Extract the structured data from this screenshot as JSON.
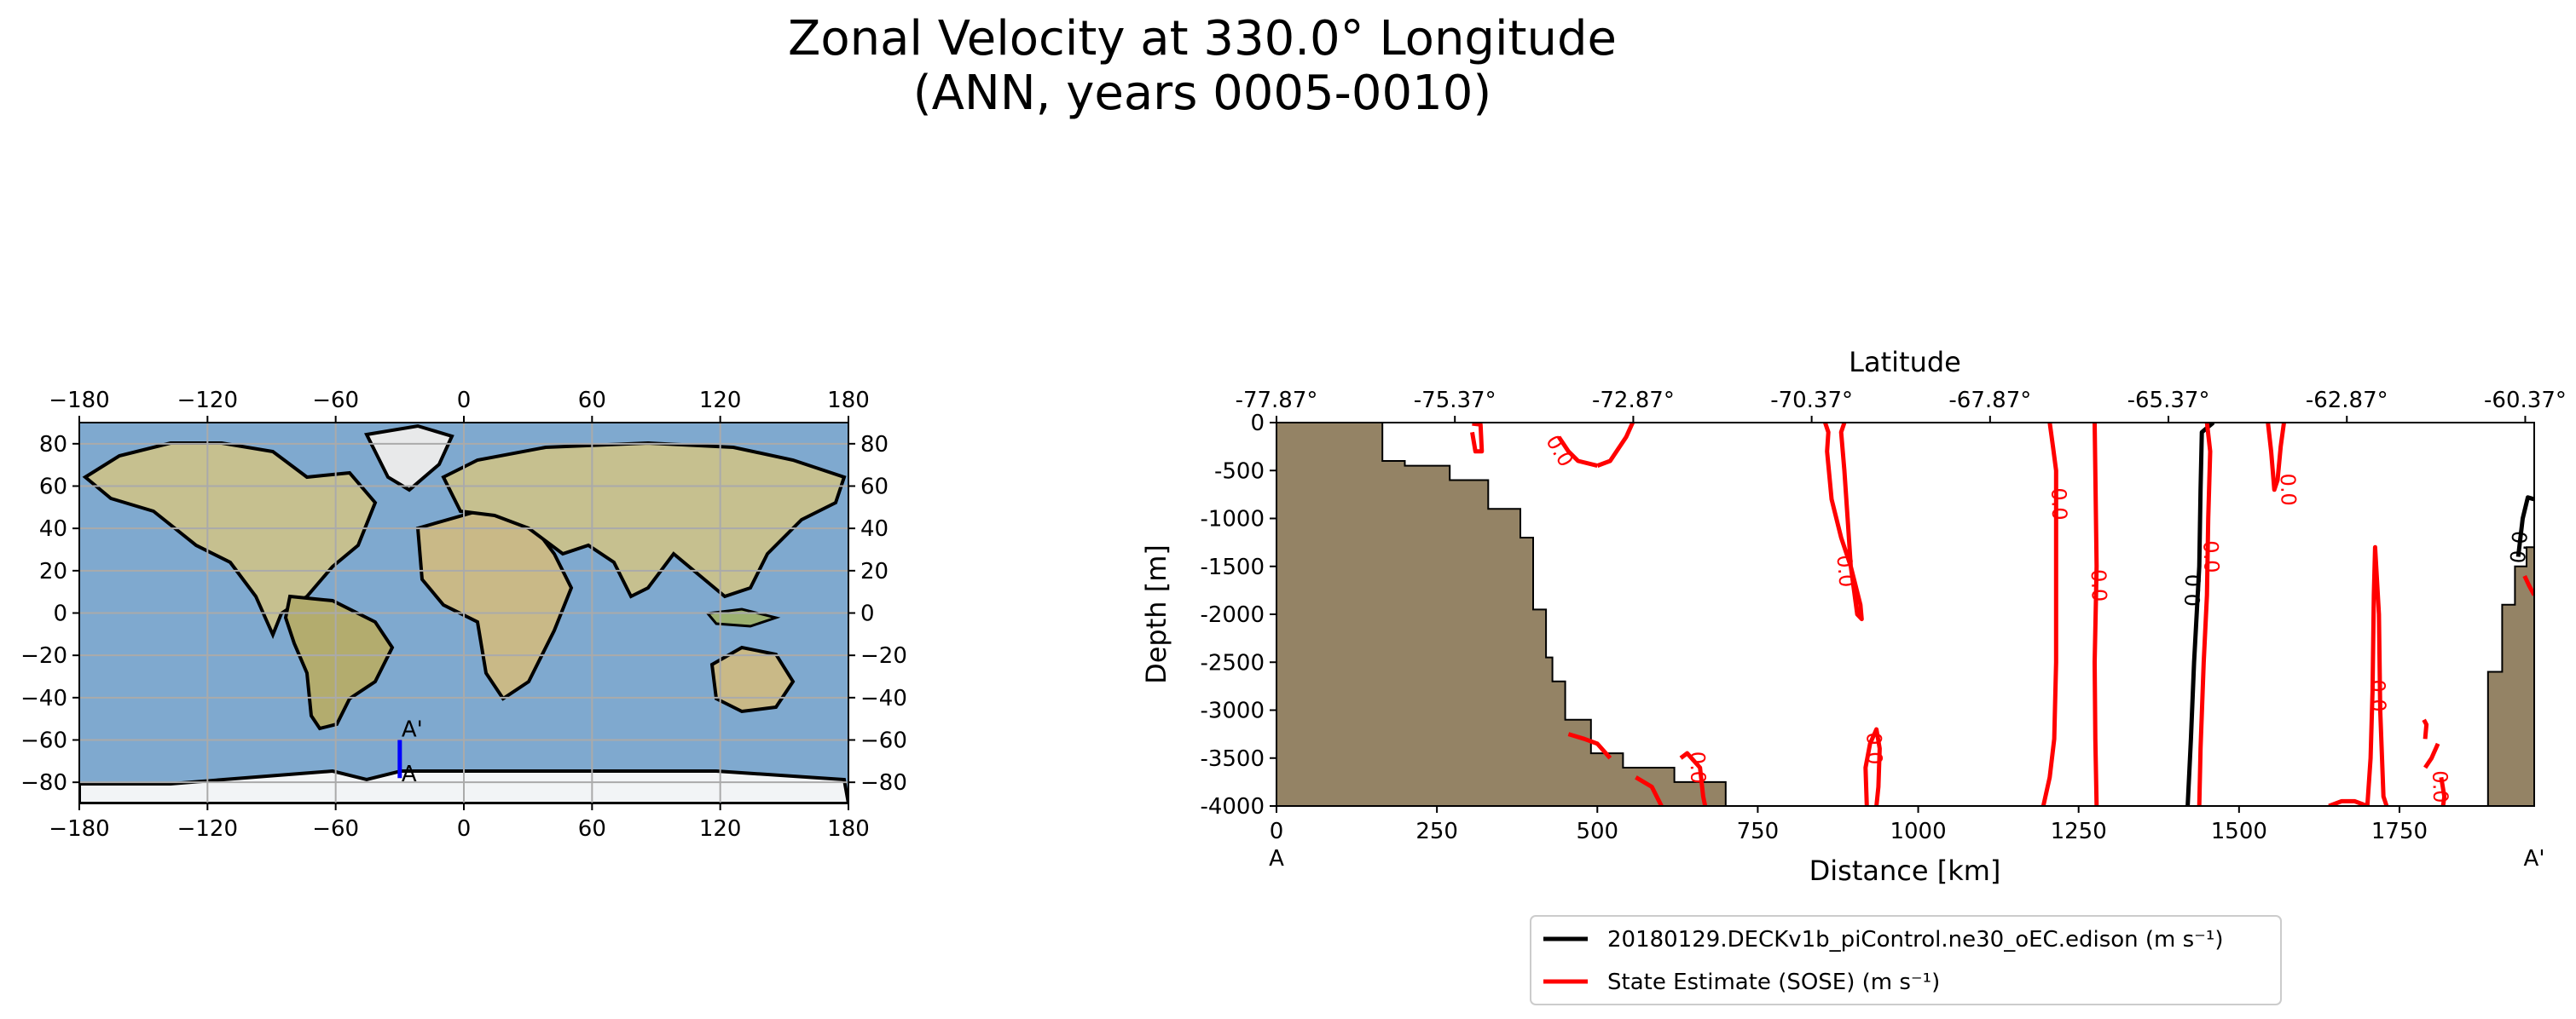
{
  "title_line1": "Zonal Velocity at 330.0° Longitude",
  "title_line2": "(ANN, years 0005-0010)",
  "map": {
    "x_ticks": [
      -180,
      -120,
      -60,
      0,
      60,
      120,
      180
    ],
    "y_ticks": [
      80,
      60,
      40,
      20,
      0,
      -20,
      -40,
      -60,
      -80
    ],
    "x_ticks_text": [
      "−180",
      "−120",
      "−60",
      "0",
      "60",
      "120",
      "180"
    ],
    "y_ticks_text": [
      "80",
      "60",
      "40",
      "20",
      "0",
      "−20",
      "−40",
      "−60",
      "−80"
    ],
    "transect_label_start": "A",
    "transect_label_end": "A'",
    "transect_lon": -30,
    "transect_lat_start": -78,
    "transect_lat_end": -60,
    "colors": {
      "ocean": "#7fa9cf",
      "land": "#c6c08f",
      "ice": "#f2f4f6",
      "transect": "#0000ff"
    }
  },
  "chart_data": {
    "type": "line",
    "xlabel": "Distance [km]",
    "ylabel": "Depth [m]",
    "top_axis_label": "Latitude",
    "xlim": [
      0,
      1960
    ],
    "ylim": [
      -4000,
      0
    ],
    "x_ticks": [
      0,
      250,
      500,
      750,
      1000,
      1250,
      1500,
      1750
    ],
    "x_tick_labels": [
      "0",
      "250",
      "500",
      "750",
      "1000",
      "1250",
      "1500",
      "1750"
    ],
    "y_ticks": [
      0,
      -500,
      -1000,
      -1500,
      -2000,
      -2500,
      -3000,
      -3500,
      -4000
    ],
    "y_tick_labels": [
      "0",
      "-500",
      "-1000",
      "-1500",
      "-2000",
      "-2500",
      "-3000",
      "-3500",
      "-4000"
    ],
    "top_ticks_km": [
      0,
      278,
      556,
      834,
      1112,
      1390,
      1668,
      1946
    ],
    "top_tick_labels": [
      "-77.87°",
      "-75.37°",
      "-72.87°",
      "-70.37°",
      "-67.87°",
      "-65.37°",
      "-62.87°",
      "-60.37°"
    ],
    "endpoint_labels": {
      "start": "A",
      "end": "A'"
    },
    "bathymetry_color": "#948365",
    "bathymetry": [
      [
        0,
        0
      ],
      [
        165,
        0
      ],
      [
        165,
        -400
      ],
      [
        200,
        -400
      ],
      [
        200,
        -450
      ],
      [
        270,
        -450
      ],
      [
        270,
        -600
      ],
      [
        330,
        -600
      ],
      [
        330,
        -900
      ],
      [
        380,
        -900
      ],
      [
        380,
        -1200
      ],
      [
        400,
        -1200
      ],
      [
        400,
        -1950
      ],
      [
        420,
        -1950
      ],
      [
        420,
        -2450
      ],
      [
        430,
        -2450
      ],
      [
        430,
        -2700
      ],
      [
        450,
        -2700
      ],
      [
        450,
        -3100
      ],
      [
        490,
        -3100
      ],
      [
        490,
        -3450
      ],
      [
        540,
        -3450
      ],
      [
        540,
        -3600
      ],
      [
        620,
        -3600
      ],
      [
        620,
        -3750
      ],
      [
        700,
        -3750
      ],
      [
        700,
        -4000
      ],
      [
        0,
        -4000
      ]
    ],
    "bathymetry_right": [
      [
        1960,
        -4000
      ],
      [
        1888,
        -4000
      ],
      [
        1888,
        -2600
      ],
      [
        1910,
        -2600
      ],
      [
        1910,
        -1900
      ],
      [
        1930,
        -1900
      ],
      [
        1930,
        -1500
      ],
      [
        1948,
        -1500
      ],
      [
        1948,
        -1300
      ],
      [
        1960,
        -1300
      ]
    ],
    "series": [
      {
        "name": "20180129.DECKv1b_piControl.ne30_oEC.edison (m s⁻¹)",
        "color": "#000000",
        "lines": [
          [
            [
              1420,
              -4000
            ],
            [
              1425,
              -3300
            ],
            [
              1430,
              -2500
            ],
            [
              1438,
              -1500
            ],
            [
              1440,
              -700
            ],
            [
              1442,
              -100
            ],
            [
              1460,
              0
            ]
          ],
          [
            [
              1935,
              -1400
            ],
            [
              1942,
              -1000
            ],
            [
              1950,
              -780
            ],
            [
              1960,
              -800
            ]
          ]
        ],
        "labels": [
          {
            "text": "0.0",
            "x": 1430,
            "y": -1750,
            "rotate": -88
          },
          {
            "text": "0.0",
            "x": 1938,
            "y": -1300,
            "rotate": -85
          }
        ]
      },
      {
        "name": "State Estimate (SOSE) (m s⁻¹)",
        "color": "#ff0000",
        "lines": [
          [
            [
              305,
              -100
            ],
            [
              310,
              -300
            ],
            [
              320,
              -300
            ],
            [
              318,
              -20
            ],
            [
              305,
              -10
            ]
          ],
          [
            [
              440,
              -150
            ],
            [
              455,
              -300
            ],
            [
              470,
              -400
            ],
            [
              500,
              -450
            ]
          ],
          [
            [
              500,
              -450
            ],
            [
              520,
              -400
            ],
            [
              545,
              -150
            ],
            [
              555,
              0
            ]
          ],
          [
            [
              855,
              0
            ],
            [
              860,
              -100
            ],
            [
              858,
              -300
            ],
            [
              865,
              -800
            ],
            [
              880,
              -1200
            ],
            [
              895,
              -1500
            ],
            [
              910,
              -1900
            ],
            [
              912,
              -2050
            ],
            [
              905,
              -2000
            ],
            [
              895,
              -1500
            ],
            [
              890,
              -1000
            ],
            [
              885,
              -500
            ],
            [
              880,
              -100
            ],
            [
              885,
              0
            ]
          ],
          [
            [
              1205,
              0
            ],
            [
              1210,
              -250
            ],
            [
              1215,
              -500
            ],
            [
              1215,
              -1500
            ],
            [
              1215,
              -2500
            ],
            [
              1212,
              -3300
            ],
            [
              1205,
              -3700
            ],
            [
              1195,
              -4000
            ]
          ],
          [
            [
              1275,
              0
            ],
            [
              1278,
              -1500
            ],
            [
              1275,
              -2500
            ],
            [
              1276,
              -3300
            ],
            [
              1278,
              -4000
            ]
          ],
          [
            [
              1450,
              0
            ],
            [
              1455,
              -300
            ],
            [
              1452,
              -1000
            ],
            [
              1450,
              -1800
            ],
            [
              1445,
              -2500
            ],
            [
              1440,
              -3400
            ],
            [
              1438,
              -4000
            ]
          ],
          [
            [
              1545,
              0
            ],
            [
              1550,
              -300
            ],
            [
              1555,
              -700
            ],
            [
              1560,
              -600
            ],
            [
              1565,
              -250
            ],
            [
              1570,
              0
            ]
          ],
          [
            [
              920,
              -4000
            ],
            [
              918,
              -3600
            ],
            [
              925,
              -3350
            ],
            [
              935,
              -3200
            ],
            [
              940,
              -3400
            ],
            [
              938,
              -3800
            ],
            [
              935,
              -4000
            ]
          ],
          [
            [
              1700,
              -4000
            ],
            [
              1705,
              -3500
            ],
            [
              1708,
              -2800
            ],
            [
              1710,
              -1800
            ],
            [
              1712,
              -1300
            ],
            [
              1718,
              -2000
            ],
            [
              1720,
              -3000
            ],
            [
              1725,
              -3900
            ],
            [
              1730,
              -4000
            ]
          ],
          [
            [
              1640,
              -4000
            ],
            [
              1660,
              -3950
            ],
            [
              1680,
              -3950
            ],
            [
              1700,
              -4000
            ]
          ],
          [
            [
              1790,
              -3600
            ],
            [
              1800,
              -3500
            ],
            [
              1810,
              -3350
            ]
          ],
          [
            [
              1790,
              -3300
            ],
            [
              1792,
              -3150
            ],
            [
              1788,
              -3100
            ]
          ],
          [
            [
              1815,
              -3700
            ],
            [
              1820,
              -3900
            ],
            [
              1818,
              -4000
            ]
          ],
          [
            [
              455,
              -3250
            ],
            [
              480,
              -3300
            ],
            [
              500,
              -3350
            ],
            [
              520,
              -3500
            ]
          ],
          [
            [
              560,
              -3700
            ],
            [
              585,
              -3800
            ],
            [
              600,
              -4000
            ]
          ],
          [
            [
              630,
              -3500
            ],
            [
              640,
              -3450
            ],
            [
              660,
              -3600
            ],
            [
              665,
              -3900
            ],
            [
              668,
              -4000
            ]
          ],
          [
            [
              1945,
              -1600
            ],
            [
              1952,
              -1700
            ],
            [
              1960,
              -1800
            ]
          ]
        ],
        "labels": [
          {
            "text": "0.0",
            "x": 440,
            "y": -300,
            "rotate": 60
          },
          {
            "text": "0.0",
            "x": 885,
            "y": -1550,
            "rotate": 85
          },
          {
            "text": "0.0",
            "x": 1218,
            "y": -850,
            "rotate": 88
          },
          {
            "text": "0.0",
            "x": 1280,
            "y": -1700,
            "rotate": 88
          },
          {
            "text": "0.0",
            "x": 1455,
            "y": -1400,
            "rotate": 88
          },
          {
            "text": "0.0",
            "x": 1575,
            "y": -700,
            "rotate": 88
          },
          {
            "text": "0.0",
            "x": 930,
            "y": -3400,
            "rotate": 88
          },
          {
            "text": "0.0",
            "x": 1715,
            "y": -2850,
            "rotate": 88
          },
          {
            "text": "0.0",
            "x": 1812,
            "y": -3800,
            "rotate": 88
          },
          {
            "text": "0.0",
            "x": 655,
            "y": -3600,
            "rotate": 88
          }
        ]
      }
    ],
    "legend_position": "bottom-center"
  }
}
